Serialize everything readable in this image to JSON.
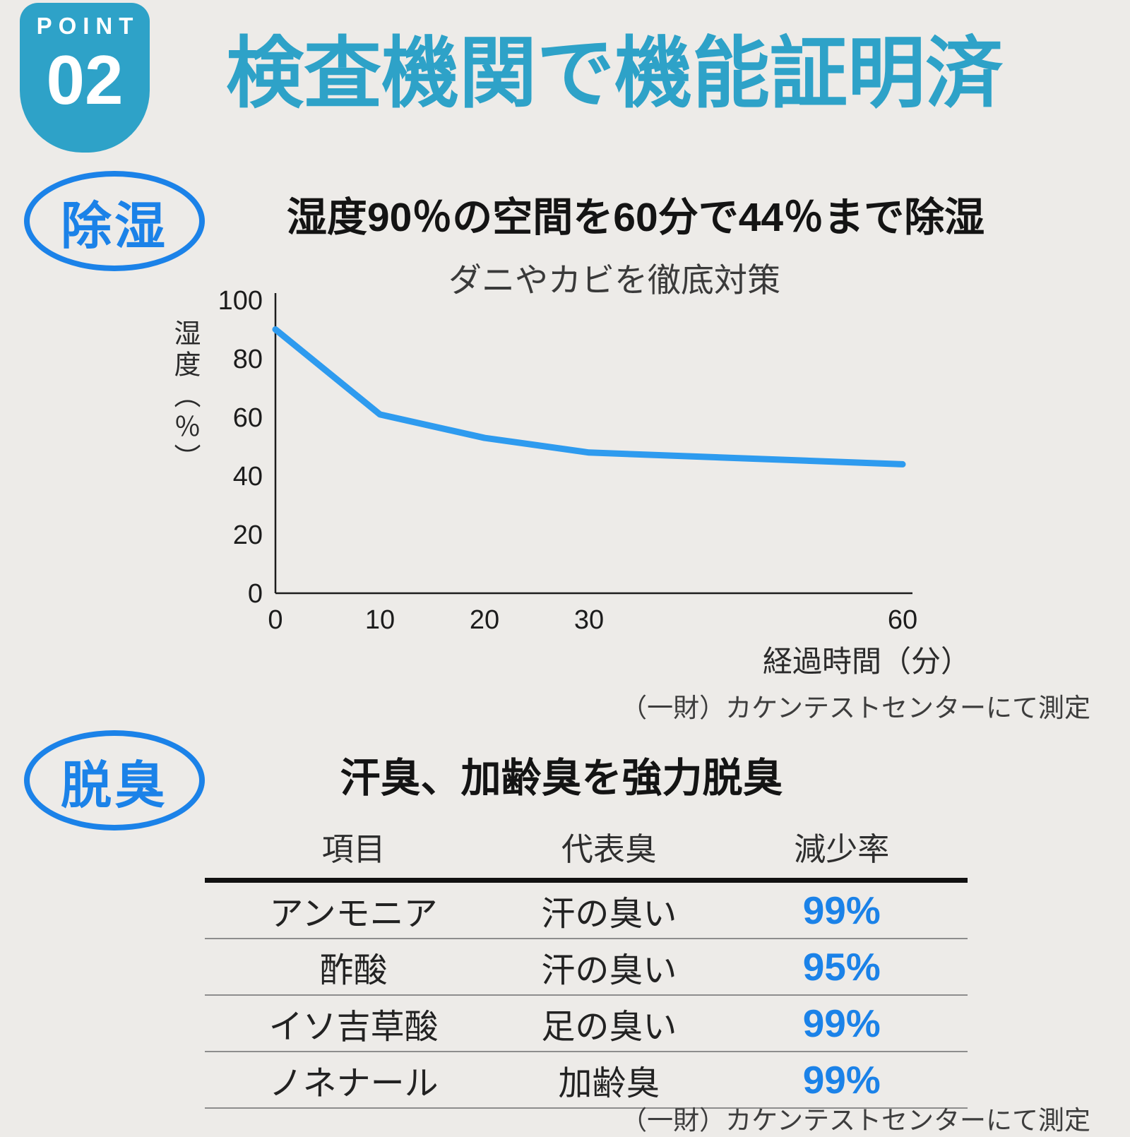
{
  "colors": {
    "teal": "#2ea2c8",
    "blue": "#1b82e8",
    "background": "#edebe8"
  },
  "point_badge": {
    "label": "POINT",
    "number": "02"
  },
  "main_title": "検査機関で機能証明済",
  "dehumidify": {
    "badge": "除湿",
    "heading": "湿度90％の空間を60分で44％まで除湿",
    "subtitle": "ダニやカビを徹底対策",
    "caption": "（一財）カケンテストセンターにて測定"
  },
  "deodorize": {
    "badge": "脱臭",
    "heading": "汗臭、加齢臭を強力脱臭",
    "caption": "（一財）カケンテストセンターにて測定",
    "table": {
      "headers": [
        "項目",
        "代表臭",
        "減少率"
      ],
      "rows": [
        {
          "item": "アンモニア",
          "odor": "汗の臭い",
          "rate": "99%"
        },
        {
          "item": "酢酸",
          "odor": "汗の臭い",
          "rate": "95%"
        },
        {
          "item": "イソ吉草酸",
          "odor": "足の臭い",
          "rate": "99%"
        },
        {
          "item": "ノネナール",
          "odor": "加齢臭",
          "rate": "99%"
        }
      ]
    }
  },
  "chart_data": {
    "type": "line",
    "title": "ダニやカビを徹底対策",
    "x": [
      0,
      10,
      20,
      30,
      60
    ],
    "y": [
      90,
      61,
      53,
      48,
      44
    ],
    "xticks": [
      0,
      10,
      20,
      30,
      60
    ],
    "yticks": [
      0,
      20,
      40,
      60,
      80,
      100
    ],
    "xlim": [
      0,
      62
    ],
    "ylim": [
      0,
      100
    ],
    "xlabel": "経過時間（分）",
    "ylabel": "湿度（％）",
    "line_color": "#2e9bef",
    "axis_color": "#1c1c1c",
    "grid": false
  }
}
